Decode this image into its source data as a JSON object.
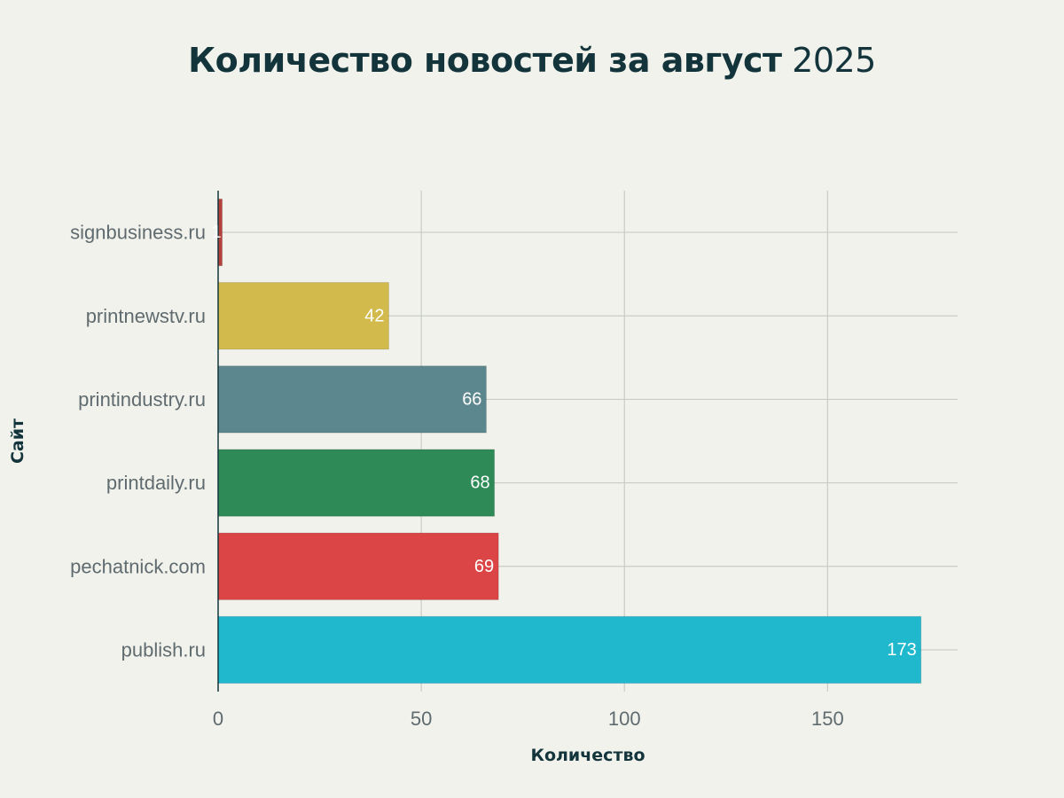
{
  "title": {
    "main": "Количество новостей за август",
    "year": "2025"
  },
  "chart_data": {
    "type": "bar",
    "orientation": "horizontal",
    "title": "Количество новостей за август 2025",
    "xlabel": "Количество",
    "ylabel": "Сайт",
    "categories": [
      "publish.ru",
      "pechatnick.com",
      "printdaily.ru",
      "printindustry.ru",
      "printnewstv.ru",
      "signbusiness.ru"
    ],
    "values": [
      173,
      69,
      68,
      66,
      42,
      1
    ],
    "colors": [
      "#1fb8cd",
      "#db4545",
      "#2e8b57",
      "#5d878f",
      "#d2ba4c",
      "#b4413c"
    ],
    "xlim": [
      0,
      182
    ],
    "xticks": [
      0,
      50,
      100,
      150
    ],
    "xtick_labels": [
      "0",
      "50",
      "100",
      "150"
    ],
    "grid": true,
    "data_labels": true
  }
}
